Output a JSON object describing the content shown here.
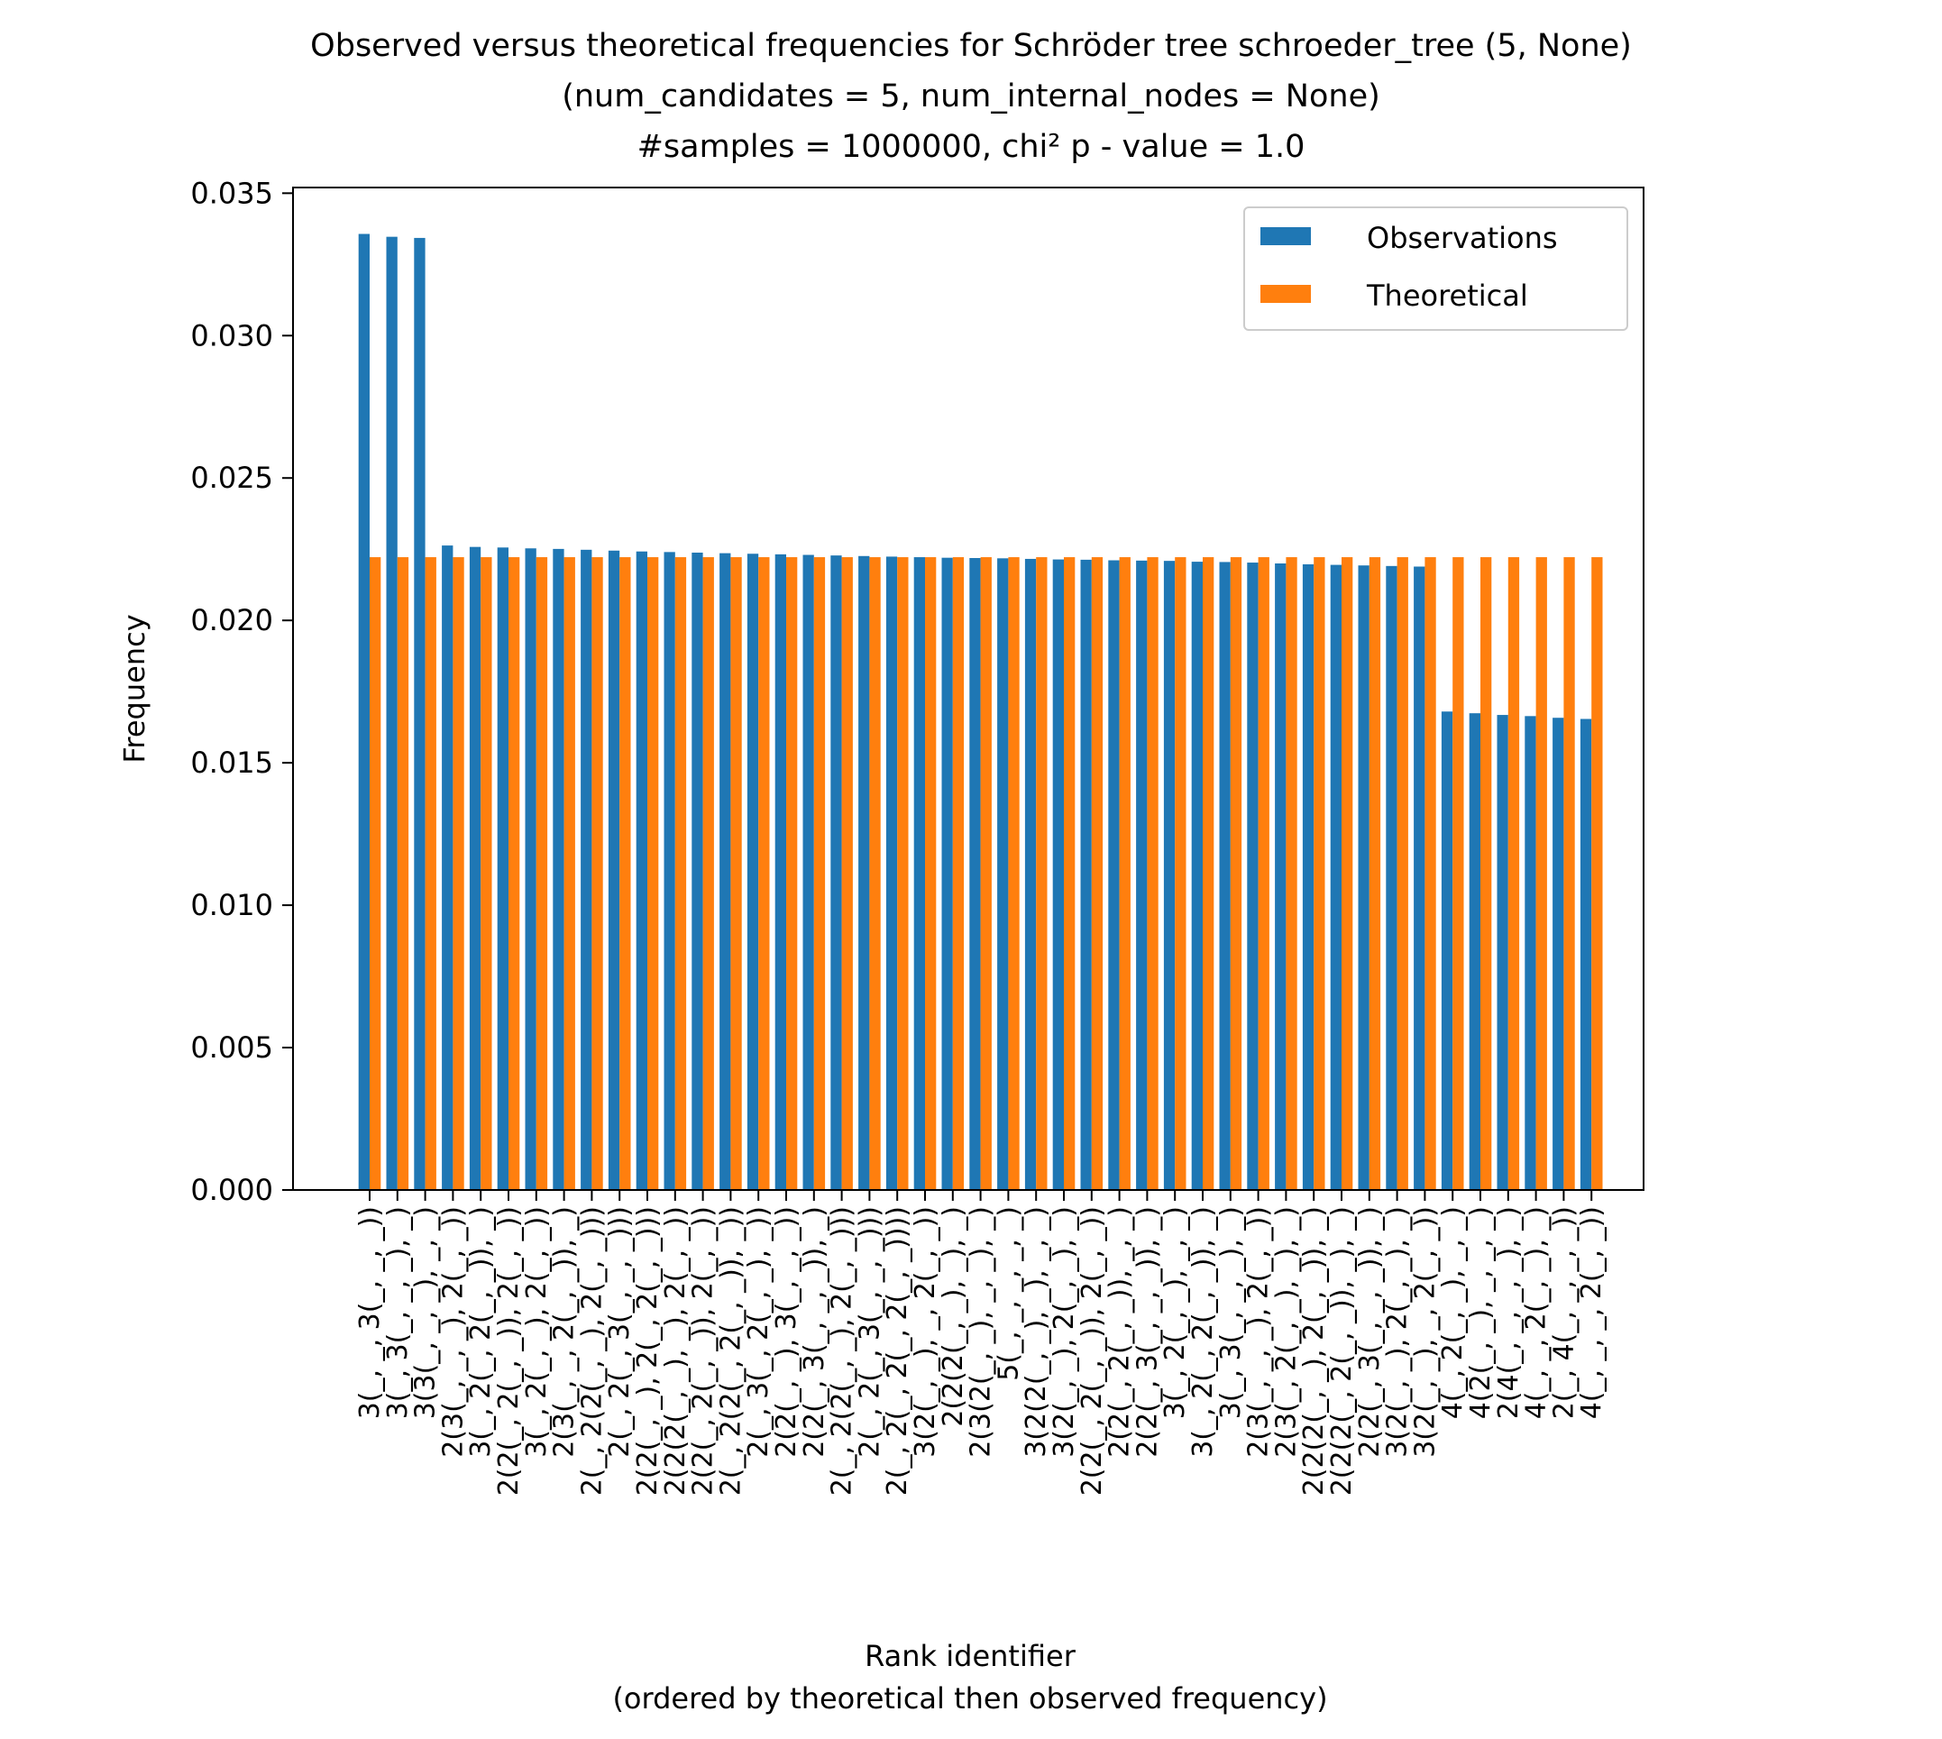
{
  "chart_data": {
    "type": "bar",
    "title": [
      "Observed versus theoretical frequencies for Schröder tree schroeder_tree (5, None)",
      "(num_candidates = 5, num_internal_nodes = None)",
      "#samples = 1000000, chi² p - value = 1.0"
    ],
    "xlabel": [
      "Rank identifier",
      "(ordered by theoretical then observed frequency)"
    ],
    "ylabel": "Frequency",
    "ylim": [
      0,
      0.0352
    ],
    "yticks": [
      0.0,
      0.005,
      0.01,
      0.015,
      0.02,
      0.025,
      0.03,
      0.035
    ],
    "ytick_labels": [
      "0.000",
      "0.005",
      "0.010",
      "0.015",
      "0.020",
      "0.025",
      "0.030",
      "0.035"
    ],
    "legend": {
      "position": "top-right"
    },
    "colors": {
      "Observations": "#1f77b4",
      "Theoretical": "#ff7f0e"
    },
    "categories": [
      "3(_, _, 3(_, _, _))",
      "3(_, 3(_, _, _), _)",
      "3(3(_, _, _), _, _)",
      "2(3(_, _, _), 2(_, _))",
      "3(_, 2(_, 2(_, _)), _)",
      "2(2(_, 2(_, _)), 2(_, _))",
      "3(_, 2(_, _), 2(_, _))",
      "2(3(_, _, 2(_, _)), _)",
      "2(_, 2(2(_, _), 2(_, _)))",
      "2(_, 2(_, 3(_, _, _)))",
      "2(2(_, _), 2(_, 2(_, _)))",
      "2(2(2(_, _), _), 2(_, _))",
      "2(2(_, 2(_, _)), 2(_, _))",
      "2(_, 2(2(_, 2(_, _)), _))",
      "2(_, 3(_, 2(_, _), _))",
      "2(2(_, _), 3(_, _, _))",
      "2(2(_, 3(_, _, _)), _)",
      "2(_, 2(2(_, _), 2(_, _)))",
      "2(_, 2(_, 3(_, _, _)))",
      "2(_, 2(_, 2(_, 2(_, _))))",
      "3(2(_, _), _, 2(_, _))",
      "2(2(2(_, _), _), _)",
      "2(3(2(_, _), _, _), _)",
      "5(_, _, _, _, _)",
      "3(2(2(_, _), _), _, _)",
      "3(2(_, _), 2(_, _), _)",
      "2(2(_, 2(_, _)), 2(_, _))",
      "2(2(_, 2(_, _)), _, _)",
      "2(2(_, 3(_, _, _)), _)",
      "3(_, 2(_, _), _, _)",
      "3(_, 2(_, 2(_, _)), _)",
      "3(_, 3(_, _, _), _)",
      "2(3(_, _, _), 2(_, _))",
      "2(3(_, 2(_, _), _), _)",
      "2(2(2(_, _), 2(_, _)), _)",
      "2(2(2(_, 2(_, _)), _), _)",
      "2(2(_, 3(_, _, _)), _)",
      "3(2(_, _), 2(_, _), _)",
      "3(2(_, _), _, 2(_, _))",
      "4(_, 2(_, _), _, _)",
      "4(2(_, _), _, _, _)",
      "2(4(_, _, _, _), _)",
      "4(_, _, 2(_, _), _)",
      "2(_, 4(_, _, _, _))",
      "4(_, _, _, 2(_, _))"
    ],
    "series": [
      {
        "name": "Observations",
        "values": [
          0.03357,
          0.03347,
          0.03343,
          0.02263,
          0.02258,
          0.02256,
          0.02253,
          0.02251,
          0.02248,
          0.02245,
          0.02242,
          0.0224,
          0.02238,
          0.02236,
          0.02234,
          0.02232,
          0.0223,
          0.02228,
          0.02226,
          0.02224,
          0.02222,
          0.0222,
          0.02219,
          0.02218,
          0.02216,
          0.02214,
          0.02213,
          0.02211,
          0.0221,
          0.02209,
          0.02206,
          0.02205,
          0.02203,
          0.022,
          0.02197,
          0.02195,
          0.02193,
          0.02191,
          0.02189,
          0.0168,
          0.01674,
          0.01668,
          0.01664,
          0.01658,
          0.01654
        ]
      },
      {
        "name": "Theoretical",
        "values": [
          0.02222,
          0.02222,
          0.02222,
          0.02222,
          0.02222,
          0.02222,
          0.02222,
          0.02222,
          0.02222,
          0.02222,
          0.02222,
          0.02222,
          0.02222,
          0.02222,
          0.02222,
          0.02222,
          0.02222,
          0.02222,
          0.02222,
          0.02222,
          0.02222,
          0.02222,
          0.02222,
          0.02222,
          0.02222,
          0.02222,
          0.02222,
          0.02222,
          0.02222,
          0.02222,
          0.02222,
          0.02222,
          0.02222,
          0.02222,
          0.02222,
          0.02222,
          0.02222,
          0.02222,
          0.02222,
          0.02222,
          0.02222,
          0.02222,
          0.02222,
          0.02222,
          0.02222
        ]
      }
    ]
  }
}
